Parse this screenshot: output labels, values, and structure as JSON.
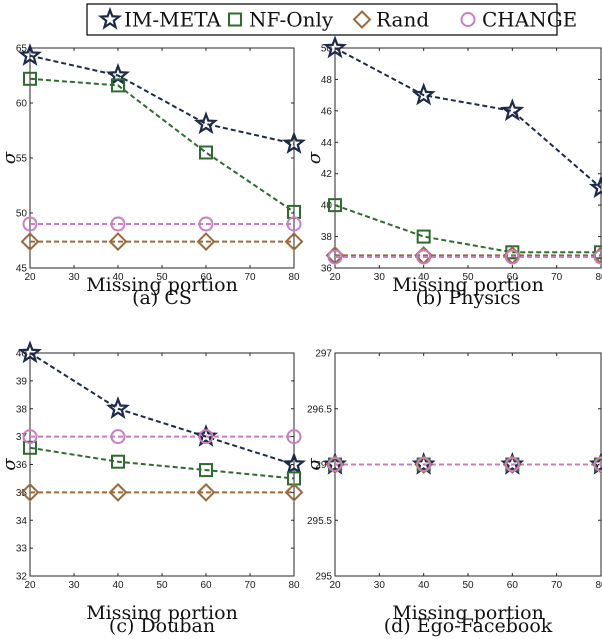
{
  "legend": [
    {
      "name": "IM-META",
      "color": "#1d2b4a",
      "marker": "star"
    },
    {
      "name": "NF-Only",
      "color": "#2e6b2e",
      "marker": "square"
    },
    {
      "name": "Rand",
      "color": "#9a6a3a",
      "marker": "diamond"
    },
    {
      "name": "CHANGE",
      "color": "#c97ec2",
      "marker": "circle"
    }
  ],
  "chart_data": [
    {
      "type": "line",
      "caption": "(a) CS",
      "xlabel": "Missing portion",
      "ylabel": "σ",
      "x": [
        20,
        40,
        60,
        80
      ],
      "xlim": [
        20,
        80
      ],
      "xticks": [
        20,
        30,
        40,
        50,
        60,
        70,
        80
      ],
      "ylim": [
        45,
        65
      ],
      "yticks": [
        45,
        50,
        55,
        60,
        65
      ],
      "series": [
        {
          "name": "IM-META",
          "values": [
            64.3,
            62.5,
            58.1,
            56.3
          ]
        },
        {
          "name": "NF-Only",
          "values": [
            62.2,
            61.6,
            55.5,
            50.1
          ]
        },
        {
          "name": "Rand",
          "values": [
            47.4,
            47.4,
            47.4,
            47.4
          ]
        },
        {
          "name": "CHANGE",
          "values": [
            49.0,
            49.0,
            49.0,
            49.0
          ]
        }
      ]
    },
    {
      "type": "line",
      "caption": "(b) Physics",
      "xlabel": "Missing portion",
      "ylabel": "σ",
      "x": [
        20,
        40,
        60,
        80
      ],
      "xlim": [
        20,
        80
      ],
      "xticks": [
        20,
        30,
        40,
        50,
        60,
        70,
        80
      ],
      "ylim": [
        36,
        50
      ],
      "yticks": [
        36,
        38,
        40,
        42,
        44,
        46,
        48,
        50
      ],
      "series": [
        {
          "name": "IM-META",
          "values": [
            50.0,
            47.0,
            46.0,
            41.1
          ]
        },
        {
          "name": "NF-Only",
          "values": [
            40.0,
            38.0,
            37.0,
            37.0
          ]
        },
        {
          "name": "Rand",
          "values": [
            36.8,
            36.8,
            36.8,
            36.8
          ]
        },
        {
          "name": "CHANGE",
          "values": [
            36.7,
            36.7,
            36.7,
            36.7
          ]
        }
      ]
    },
    {
      "type": "line",
      "caption": "(c) Douban",
      "xlabel": "Missing portion",
      "ylabel": "σ",
      "x": [
        20,
        40,
        60,
        80
      ],
      "xlim": [
        20,
        80
      ],
      "xticks": [
        20,
        30,
        40,
        50,
        60,
        70,
        80
      ],
      "ylim": [
        32,
        40
      ],
      "yticks": [
        32,
        33,
        34,
        35,
        36,
        37,
        38,
        39,
        40
      ],
      "series": [
        {
          "name": "IM-META",
          "values": [
            40.0,
            38.0,
            37.0,
            36.0
          ]
        },
        {
          "name": "NF-Only",
          "values": [
            36.6,
            36.1,
            35.8,
            35.5
          ]
        },
        {
          "name": "Rand",
          "values": [
            35.0,
            35.0,
            35.0,
            35.0
          ]
        },
        {
          "name": "CHANGE",
          "values": [
            37.0,
            37.0,
            37.0,
            37.0
          ]
        }
      ]
    },
    {
      "type": "line",
      "caption": "(d) Ego-Facebook",
      "xlabel": "Missing portion",
      "ylabel": "σ",
      "x": [
        20,
        40,
        60,
        80
      ],
      "xlim": [
        20,
        80
      ],
      "xticks": [
        20,
        30,
        40,
        50,
        60,
        70,
        80
      ],
      "ylim": [
        295,
        297
      ],
      "yticks": [
        295,
        295.5,
        296,
        296.5,
        297
      ],
      "ytick_labels": [
        "295",
        "295.5",
        "296",
        "296.5",
        "297"
      ],
      "series": [
        {
          "name": "IM-META",
          "values": [
            296,
            296,
            296,
            296
          ]
        },
        {
          "name": "NF-Only",
          "values": [
            296,
            296,
            296,
            296
          ]
        },
        {
          "name": "Rand",
          "values": [
            296,
            296,
            296,
            296
          ]
        },
        {
          "name": "CHANGE",
          "values": [
            296,
            296,
            296,
            296
          ]
        }
      ]
    }
  ]
}
